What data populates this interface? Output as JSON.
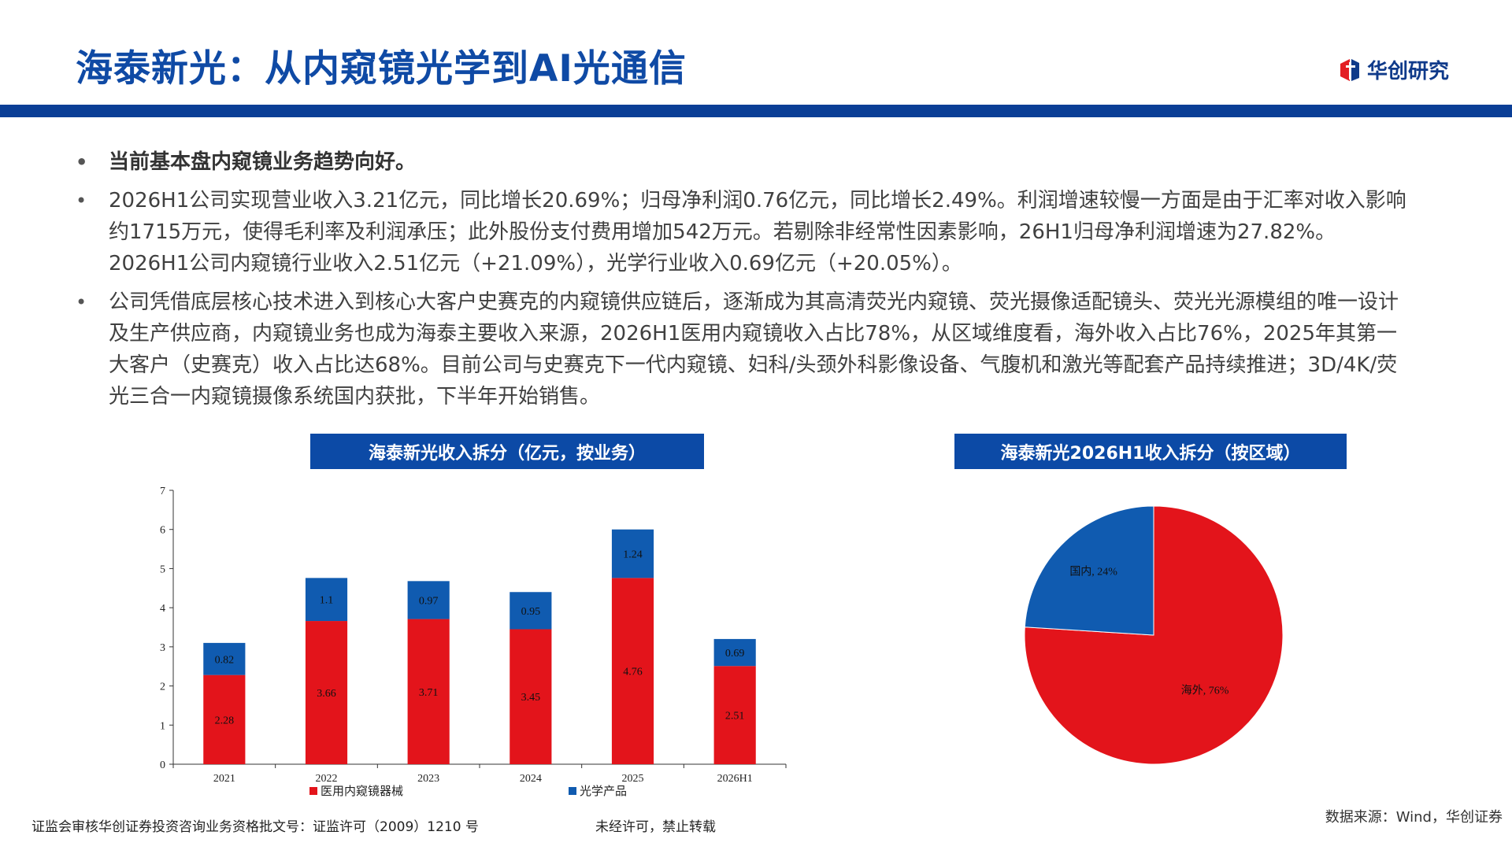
{
  "header": {
    "title": "海泰新光：从内窥镜光学到AI光通信",
    "logo_text": "华创研究",
    "brand_blue": "#0c4aa6",
    "brand_red": "#e31e24"
  },
  "bullets": [
    "当前基本盘内窥镜业务趋势向好。",
    "2026H1公司实现营业收入3.21亿元，同比增长20.69%；归母净利润0.76亿元，同比增长2.49%。利润增速较慢一方面是由于汇率对收入影响约1715万元，使得毛利率及利润承压；此外股份支付费用增加542万元。若剔除非经常性因素影响，26H1归母净利润增速为27.82%。2026H1公司内窥镜行业收入2.51亿元（+21.09%），光学行业收入0.69亿元（+20.05%）。",
    "公司凭借底层核心技术进入到核心大客户史赛克的内窥镜供应链后，逐渐成为其高清荧光内窥镜、荧光摄像适配镜头、荧光光源模组的唯一设计及生产供应商，内窥镜业务也成为海泰主要收入来源，2026H1医用内窥镜收入占比78%，从区域维度看，海外收入占比76%，2025年其第一大客户（史赛克）收入占比达68%。目前公司与史赛克下一代内窥镜、妇科/头颈外科影像设备、气腹机和激光等配套产品持续推进；3D/4K/荧光三合一内窥镜摄像系统国内获批，下半年开始销售。"
  ],
  "charts": {
    "bar_title": "海泰新光收入拆分（亿元，按业务）",
    "pie_title": "海泰新光2026H1收入拆分（按区域）"
  },
  "chart_data": [
    {
      "type": "bar",
      "stacked": true,
      "title": "海泰新光收入拆分（亿元，按业务）",
      "categories": [
        "2021",
        "2022",
        "2023",
        "2024",
        "2025",
        "2026H1"
      ],
      "series": [
        {
          "name": "医用内窥镜器械",
          "color": "#e3141b",
          "values": [
            2.28,
            3.66,
            3.71,
            3.45,
            4.76,
            2.51
          ],
          "labels": [
            "2.28",
            "3.66",
            "3.71",
            "3.45",
            "4.76",
            "2.51"
          ]
        },
        {
          "name": "光学产品",
          "color": "#105bb0",
          "values": [
            0.82,
            1.1,
            0.97,
            0.95,
            1.24,
            0.69
          ],
          "labels": [
            "0.82",
            "1.1",
            "0.97",
            "0.95",
            "1.24",
            "0.69"
          ]
        }
      ],
      "ylim": [
        0,
        7
      ],
      "yticks": [
        "0",
        "1",
        "2",
        "3",
        "4",
        "5",
        "6",
        "7"
      ],
      "legend": "bottom"
    },
    {
      "type": "pie",
      "title": "海泰新光2026H1收入拆分（按区域）",
      "slices": [
        {
          "label": "海外, 76%",
          "value": 76,
          "color": "#e3141b"
        },
        {
          "label": "国内, 24%",
          "value": 24,
          "color": "#105bb0"
        }
      ]
    }
  ],
  "footer": {
    "license": "证监会审核华创证券投资咨询业务资格批文号：证监许可（2009）1210 号",
    "notice": "未经许可，禁止转载",
    "source": "数据来源：Wind，华创证券"
  }
}
